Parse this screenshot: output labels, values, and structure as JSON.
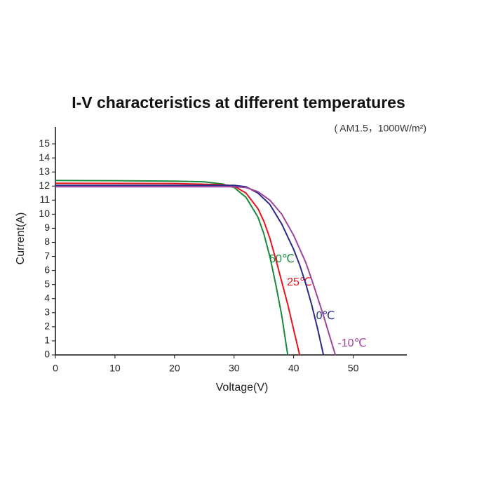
{
  "chart_data": {
    "type": "line",
    "title": "I-V characteristics at different temperatures",
    "subtitle": "( AM1.5，1000W/m²)",
    "xlabel": "Voltage(V)",
    "ylabel": "Current(A)",
    "xlim": [
      0,
      59
    ],
    "ylim": [
      0,
      16.2
    ],
    "xticks": [
      0,
      10,
      20,
      30,
      40,
      50
    ],
    "yticks": [
      0,
      1,
      2,
      3,
      4,
      5,
      6,
      7,
      8,
      9,
      10,
      11,
      12,
      13,
      14,
      15
    ],
    "series": [
      {
        "name": "50℃",
        "color": "#1a8a3a",
        "x": [
          0,
          10,
          20,
          25,
          28,
          30,
          32,
          34,
          35,
          36,
          37,
          38,
          39
        ],
        "values": [
          12.4,
          12.38,
          12.35,
          12.3,
          12.15,
          11.9,
          11.2,
          9.8,
          8.6,
          7.0,
          5.0,
          2.8,
          0
        ]
      },
      {
        "name": "25℃",
        "color": "#e8141c",
        "x": [
          0,
          20,
          28,
          30,
          32,
          34,
          35,
          36,
          37,
          38,
          39,
          40,
          41
        ],
        "values": [
          12.2,
          12.18,
          12.1,
          12.0,
          11.5,
          10.4,
          9.5,
          8.3,
          6.8,
          5.2,
          3.6,
          1.8,
          0
        ]
      },
      {
        "name": "0℃",
        "color": "#2a2a8c",
        "x": [
          0,
          30,
          32,
          34,
          36,
          38,
          40,
          41,
          42,
          43,
          44,
          45
        ],
        "values": [
          12.05,
          12.05,
          11.95,
          11.5,
          10.7,
          9.3,
          7.5,
          6.4,
          5.1,
          3.6,
          1.9,
          0
        ]
      },
      {
        "name": "-10℃",
        "color": "#a0449a",
        "x": [
          0,
          30,
          32,
          34,
          36,
          38,
          40,
          42,
          43,
          44,
          45,
          46,
          47
        ],
        "values": [
          11.95,
          11.95,
          11.9,
          11.6,
          11.0,
          10.0,
          8.5,
          6.6,
          5.4,
          4.1,
          2.8,
          1.4,
          0
        ]
      }
    ]
  }
}
